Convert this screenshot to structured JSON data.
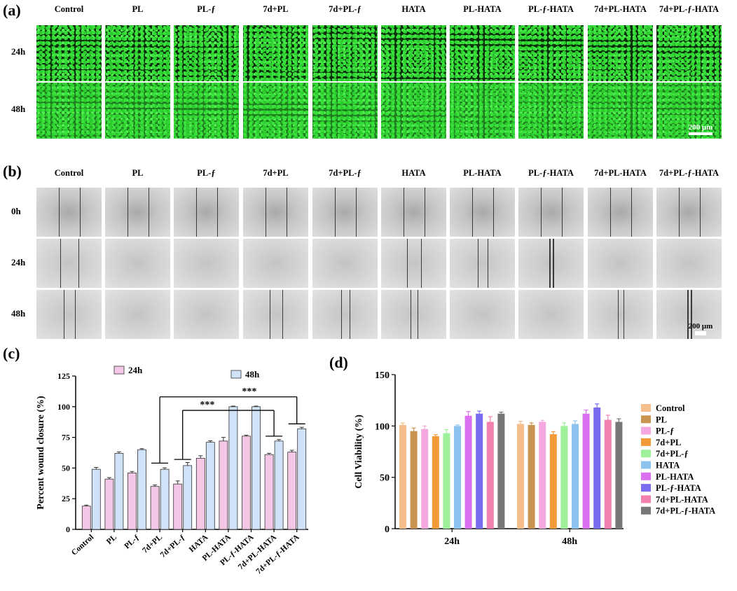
{
  "panels": {
    "a": "(a)",
    "b": "(b)",
    "c": "(c)",
    "d": "(d)"
  },
  "groups_images": [
    "Control",
    "PL",
    "PL-ƒ",
    "7d+PL",
    "7d+PL-ƒ",
    "HATA",
    "PL-HATA",
    "PL-ƒ-HATA",
    "7d+PL-HATA",
    "7d+PL-ƒ-HATA"
  ],
  "panel_a_rows": [
    "24h",
    "48h"
  ],
  "panel_b_rows": [
    "0h",
    "24h",
    "48h"
  ],
  "scale_bar": "200 μm",
  "colors": {
    "pink": "#f4c7e6",
    "light_blue": "#cfe2f7",
    "series_d": [
      "#f5be8c",
      "#c8944f",
      "#f5a8e0",
      "#f39a38",
      "#9ef09a",
      "#8fc3ef",
      "#da6ff0",
      "#7a6cf0",
      "#f27fae",
      "#777777"
    ]
  },
  "chart_data": [
    {
      "type": "bar",
      "ylabel": "Percent wound closure (%)",
      "ylim": [
        0,
        125
      ],
      "yticks": [
        "0",
        "25",
        "50",
        "75",
        "100",
        "125"
      ],
      "categories": [
        "Control",
        "PL",
        "PL-ƒ",
        "7d+PL",
        "7d+PL-ƒ",
        "HATA",
        "PL-HATA",
        "PL-ƒ-HATA",
        "7d+PL-HATA",
        "7d+PL-ƒ-HATA"
      ],
      "series": [
        {
          "name": "24h",
          "values": [
            19,
            41,
            46,
            35,
            37,
            58,
            72,
            76,
            61,
            63
          ],
          "errors": [
            0.8,
            1.2,
            1.2,
            1.2,
            2.5,
            2,
            3,
            0.8,
            1,
            1.5
          ]
        },
        {
          "name": "48h",
          "values": [
            49,
            62,
            65,
            49,
            52,
            71,
            100,
            100,
            72,
            82
          ],
          "errors": [
            1.5,
            1.2,
            0.8,
            1.2,
            2.5,
            1.2,
            0.5,
            0.5,
            1.2,
            1.2
          ]
        }
      ],
      "significance": [
        "***",
        "***"
      ],
      "legend": "top"
    },
    {
      "type": "bar",
      "ylabel": "Cell Viability (%)",
      "ylim": [
        0,
        150
      ],
      "yticks": [
        "0",
        "50",
        "100",
        "150"
      ],
      "categories": [
        "24h",
        "48h"
      ],
      "series": [
        {
          "name": "Control",
          "values": [
            101,
            102
          ],
          "errors": [
            2,
            2.5
          ]
        },
        {
          "name": "PL",
          "values": [
            95,
            101
          ],
          "errors": [
            3,
            2
          ]
        },
        {
          "name": "PL-ƒ",
          "values": [
            97,
            104
          ],
          "errors": [
            3,
            1.5
          ]
        },
        {
          "name": "7d+PL",
          "values": [
            90,
            92
          ],
          "errors": [
            1.5,
            2.5
          ]
        },
        {
          "name": "7d+PL-ƒ",
          "values": [
            93,
            100
          ],
          "errors": [
            3.5,
            3
          ]
        },
        {
          "name": "HATA",
          "values": [
            100,
            102
          ],
          "errors": [
            1,
            3
          ]
        },
        {
          "name": "PL-HATA",
          "values": [
            110,
            112
          ],
          "errors": [
            4,
            3.5
          ]
        },
        {
          "name": "PL-ƒ-HATA",
          "values": [
            112,
            118
          ],
          "errors": [
            2.5,
            3.5
          ]
        },
        {
          "name": "7d+PL-HATA",
          "values": [
            104,
            106
          ],
          "errors": [
            5,
            4.5
          ]
        },
        {
          "name": "7d+PL-ƒ-HATA",
          "values": [
            112,
            104
          ],
          "errors": [
            1.5,
            3
          ]
        }
      ],
      "legend": "right"
    }
  ]
}
